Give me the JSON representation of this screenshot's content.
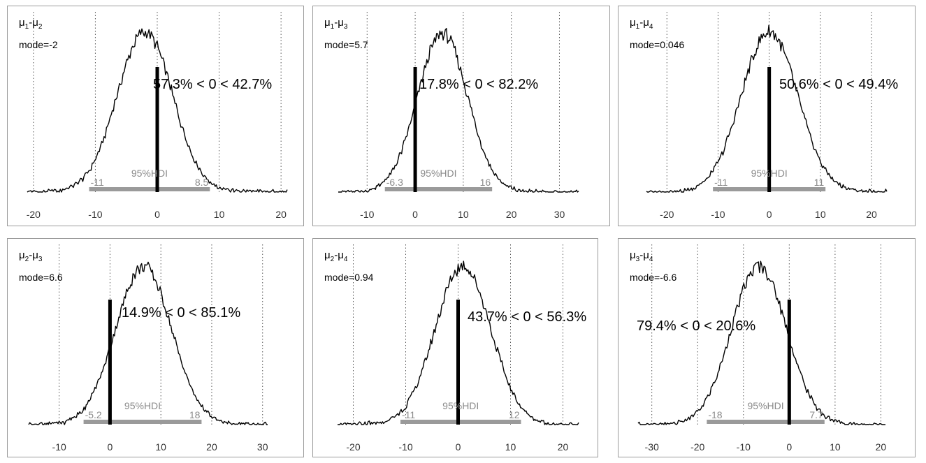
{
  "colors": {
    "density": "#000000",
    "hdi_bar": "#9a9a9a",
    "hdi_text": "#8a8a8a",
    "grid": "#555555",
    "panel_border": "#9a9a9a"
  },
  "chart_data": [
    {
      "type": "area",
      "title": "μ1-μ2",
      "title_main": "μ",
      "sub1": "1",
      "sub2": "2",
      "mode_text": "mode=-2",
      "mode": -2,
      "sd": 4.5,
      "comparison_text": "57.3% < 0 < 42.7%",
      "hdi_label": "95%HDI",
      "hdi": [
        -11,
        8.5
      ],
      "hdi_low_label": "-11",
      "hdi_high_label": "8.5",
      "xlim": [
        -21,
        21
      ],
      "xticks": [
        -20,
        -10,
        0,
        10,
        20
      ],
      "xtick_labels": [
        "-20",
        "-10",
        "0",
        "10",
        "20"
      ],
      "grid": [
        -20,
        -10,
        0,
        10,
        20
      ]
    },
    {
      "type": "area",
      "title": "μ1-μ3",
      "title_main": "μ",
      "sub1": "1",
      "sub2": "3",
      "mode_text": "mode=5.7",
      "mode": 5.7,
      "sd": 5.2,
      "comparison_text": "17.8% < 0 < 82.2%",
      "hdi_label": "95%HDI",
      "hdi": [
        -6.3,
        16
      ],
      "hdi_low_label": "-6.3",
      "hdi_high_label": "16",
      "xlim": [
        -16,
        34
      ],
      "xticks": [
        -10,
        0,
        10,
        20,
        30
      ],
      "xtick_labels": [
        "-10",
        "0",
        "10",
        "20",
        "30"
      ],
      "grid": [
        -10,
        0,
        10,
        20,
        30
      ]
    },
    {
      "type": "area",
      "title": "μ1-μ4",
      "title_main": "μ",
      "sub1": "1",
      "sub2": "4",
      "mode_text": "mode=0.046",
      "mode": 0.046,
      "sd": 5.5,
      "comparison_text": "50.6% < 0 < 49.4%",
      "hdi_label": "95%HDI",
      "hdi": [
        -11,
        11
      ],
      "hdi_low_label": "-11",
      "hdi_high_label": "11",
      "xlim": [
        -24,
        23
      ],
      "xticks": [
        -20,
        -10,
        0,
        10,
        20
      ],
      "xtick_labels": [
        "-20",
        "-10",
        "0",
        "10",
        "20"
      ],
      "grid": [
        -20,
        -10,
        0,
        10,
        20
      ]
    },
    {
      "type": "area",
      "title": "μ2-μ3",
      "title_main": "μ",
      "sub1": "2",
      "sub2": "3",
      "mode_text": "mode=6.6",
      "mode": 6.6,
      "sd": 5.5,
      "comparison_text": "14.9% < 0 < 85.1%",
      "hdi_label": "95%HDI",
      "hdi": [
        -5.2,
        18
      ],
      "hdi_low_label": "-5.2",
      "hdi_high_label": "18",
      "xlim": [
        -16,
        31
      ],
      "xticks": [
        -10,
        0,
        10,
        20,
        30
      ],
      "xtick_labels": [
        "-10",
        "0",
        "10",
        "20",
        "30"
      ],
      "grid": [
        -10,
        0,
        10,
        20,
        30
      ]
    },
    {
      "type": "area",
      "title": "μ2-μ4",
      "title_main": "μ",
      "sub1": "2",
      "sub2": "4",
      "mode_text": "mode=0.94",
      "mode": 0.94,
      "sd": 5.3,
      "comparison_text": "43.7% < 0 < 56.3%",
      "hdi_label": "95%HDI",
      "hdi": [
        -11,
        12
      ],
      "hdi_low_label": "-11",
      "hdi_high_label": "12",
      "xlim": [
        -23,
        23
      ],
      "xticks": [
        -20,
        -10,
        0,
        10,
        20
      ],
      "xtick_labels": [
        "-20",
        "-10",
        "0",
        "10",
        "20"
      ],
      "grid": [
        -20,
        -10,
        0,
        10,
        20
      ]
    },
    {
      "type": "area",
      "title": "μ3-μ4",
      "title_main": "μ",
      "sub1": "3",
      "sub2": "4",
      "mode_text": "mode=-6.6",
      "mode": -6.6,
      "sd": 6.0,
      "comparison_text": "79.4% < 0 < 20.6%",
      "hdi_label": "95%HDI",
      "hdi": [
        -18,
        7.7
      ],
      "hdi_low_label": "-18",
      "hdi_high_label": "7.7",
      "xlim": [
        -33,
        21
      ],
      "xticks": [
        -30,
        -20,
        -10,
        0,
        10,
        20
      ],
      "xtick_labels": [
        "-30",
        "-20",
        "-10",
        "0",
        "10",
        "20"
      ],
      "grid": [
        -30,
        -20,
        -10,
        0,
        10,
        20
      ]
    }
  ]
}
